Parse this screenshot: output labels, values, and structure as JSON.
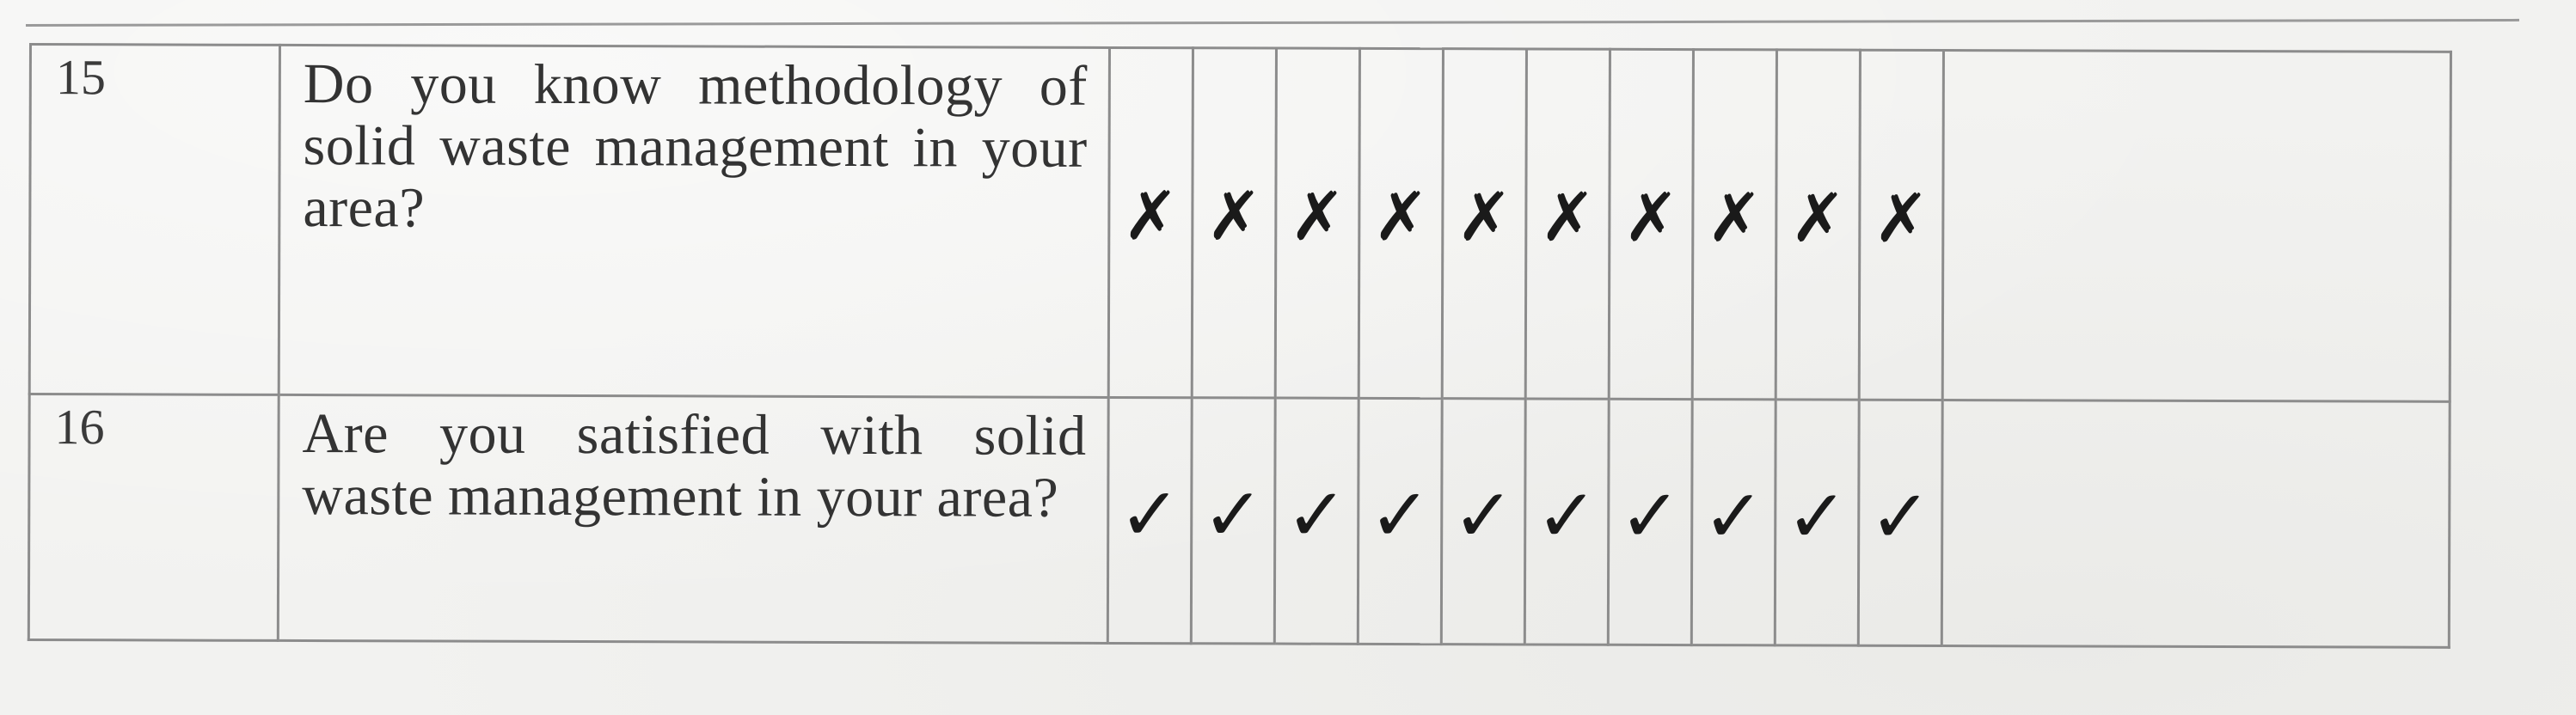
{
  "table": {
    "rows": [
      {
        "no": "15",
        "question": "Do you know methodology of solid waste management in your area?",
        "marks": [
          "x-mark-icon",
          "x-mark-icon",
          "x-mark-icon",
          "x-mark-icon",
          "x-mark-icon",
          "x-mark-icon",
          "x-mark-icon",
          "x-mark-icon",
          "x-mark-icon",
          "x-mark-icon"
        ]
      },
      {
        "no": "16",
        "question": "Are you satisfied with solid waste management in your area?",
        "marks": [
          "check-mark-icon",
          "check-mark-icon",
          "check-mark-icon",
          "check-mark-icon",
          "check-mark-icon",
          "check-mark-icon",
          "check-mark-icon",
          "check-mark-icon",
          "check-mark-icon",
          "check-mark-icon"
        ]
      }
    ]
  }
}
